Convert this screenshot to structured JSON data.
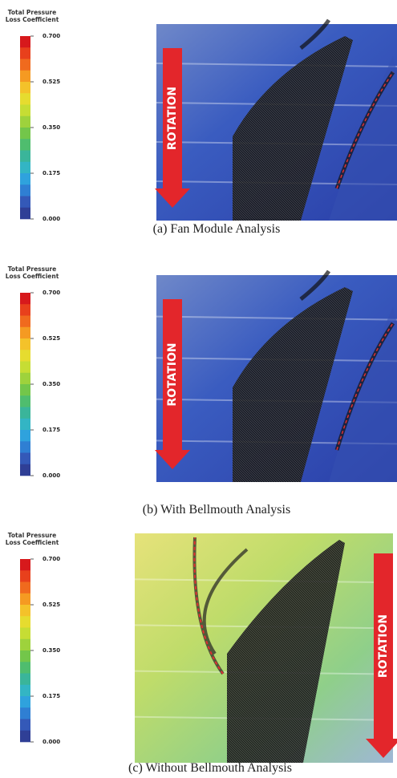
{
  "panels": [
    {
      "legend": {
        "title": [
          "Total Pressure",
          "Loss Coefficient"
        ],
        "ticks": [
          "0.700",
          "0.525",
          "0.350",
          "0.175",
          "0.000"
        ]
      },
      "rotation_label": "ROTATION",
      "caption": "(a)  Fan Module Analysis"
    },
    {
      "legend": {
        "title": [
          "Total Pressure",
          "Loss Coefficient"
        ],
        "ticks": [
          "0.700",
          "0.525",
          "0.350",
          "0.175",
          "0.000"
        ]
      },
      "rotation_label": "ROTATION",
      "caption": "(b)  With Bellmouth Analysis"
    },
    {
      "legend": {
        "title": [
          "Total Pressure",
          "Loss Coefficient"
        ],
        "ticks": [
          "0.700",
          "0.525",
          "0.350",
          "0.175",
          "0.000"
        ]
      },
      "rotation_label": "ROTATION",
      "caption": "(c)  Without Bellmouth Analysis"
    }
  ]
}
